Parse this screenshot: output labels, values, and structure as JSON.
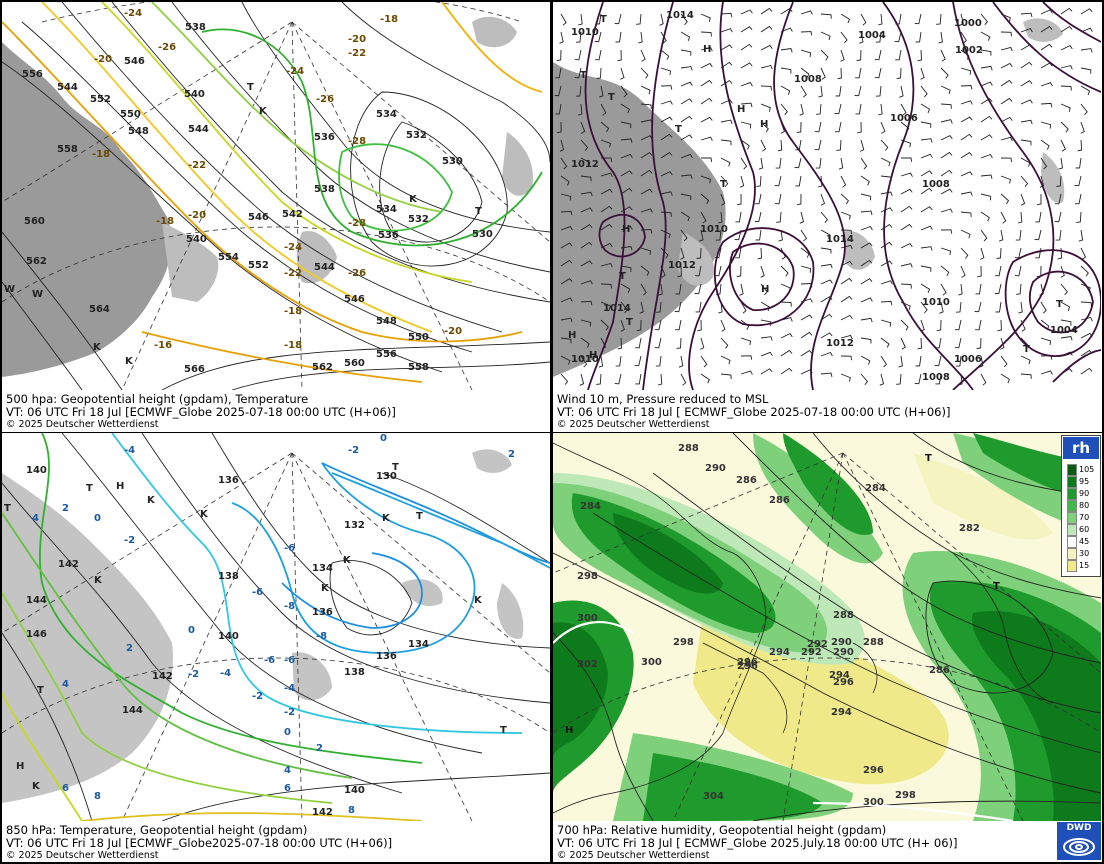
{
  "panels": [
    {
      "id": "z500",
      "caption": {
        "title": "500 hpa: Geopotential height (gpdam), Temperature",
        "valid": "VT: 06 UTC Fri  18 Jul [ECMWF_Globe 2025-07-18 00:00 UTC  (H+06)]",
        "copyright": "© 2025 Deutscher Wetterdienst"
      },
      "height_labels": [
        "556",
        "544",
        "552",
        "558",
        "550",
        "548",
        "560",
        "562",
        "564",
        "546",
        "538",
        "540",
        "544",
        "536",
        "534",
        "532",
        "530",
        "534",
        "532",
        "530",
        "536",
        "538",
        "546",
        "542",
        "554",
        "544",
        "540",
        "552",
        "550",
        "556",
        "558",
        "548",
        "546",
        "566",
        "562",
        "560"
      ],
      "temp_labels": [
        "-24",
        "-20",
        "-26",
        "-24",
        "-26",
        "-18",
        "-22",
        "-28",
        "-22",
        "-20",
        "-18",
        "-24",
        "-26",
        "-22",
        "-18",
        "-28",
        "-20",
        "-18",
        "-16",
        "-20",
        "-18"
      ],
      "pressure_centres": [
        "T",
        "K",
        "K",
        "T",
        "W",
        "W",
        "K",
        "K"
      ]
    },
    {
      "id": "mslp",
      "caption": {
        "title": "Wind 10 m, Pressure reduced to MSL",
        "valid": "VT: 06 UTC Fri  18 Jul [ ECMWF_Globe 2025-07-18 00:00 UTC (H+06)]",
        "copyright": "© 2025 Deutscher Wetterdienst"
      },
      "isobar_labels": [
        "1014",
        "1010",
        "1004",
        "1000",
        "1002",
        "1008",
        "1006",
        "1012",
        "1008",
        "1010",
        "1012",
        "1014",
        "1014",
        "1010",
        "1012",
        "1010",
        "1006",
        "1004",
        "1008"
      ],
      "pressure_centres": [
        "T",
        "H",
        "T",
        "T",
        "H",
        "T",
        "T",
        "H",
        "H",
        "T",
        "H",
        "T",
        "H",
        "T",
        "T",
        "H"
      ]
    },
    {
      "id": "t850",
      "caption": {
        "title": "850 hPa:  Temperature, Geopotential height (gpdam)",
        "valid": "VT: 06 UTC Fri  18 Jul [ECMWF_Globe2025-07-18 00:00 UTC (H+06)]",
        "copyright": "© 2025 Deutscher Wetterdienst"
      },
      "height_labels": [
        "140",
        "136",
        "130",
        "132",
        "134",
        "136",
        "138",
        "134",
        "136",
        "138",
        "140",
        "142",
        "144",
        "146",
        "142",
        "144",
        "140",
        "142"
      ],
      "temp_labels": [
        "-4",
        "-2",
        "0",
        "2",
        "4",
        "2",
        "0",
        "-2",
        "-6",
        "-6",
        "-8",
        "-8",
        "-6",
        "-6",
        "-4",
        "-2",
        "-2",
        "0",
        "2",
        "4",
        "6",
        "8",
        "6",
        "4",
        "2",
        "-2",
        "-4",
        "0",
        "8"
      ],
      "pressure_centres": [
        "T",
        "H",
        "K",
        "K",
        "T",
        "K",
        "K",
        "K",
        "T",
        "T",
        "T",
        "K",
        "H",
        "K",
        "T",
        "K"
      ]
    },
    {
      "id": "rh700",
      "caption": {
        "title": "700 hPa:  Relative humidity, Geopotential height (gpdam)",
        "valid": "VT: 06 UTC Fri  18 Jul [ ECMWF_Globe  2025.July.18 00:00 UTC (H+ 06)]",
        "copyright": "© 2025 Deutscher Wetterdienst"
      },
      "height_labels": [
        "288",
        "290",
        "286",
        "284",
        "282",
        "284",
        "286",
        "288",
        "290",
        "292",
        "294",
        "296",
        "298",
        "296",
        "294",
        "296",
        "300",
        "298",
        "300",
        "302",
        "304",
        "300",
        "298",
        "296",
        "294",
        "292",
        "290",
        "288",
        "286"
      ],
      "pressure_centres": [
        "T",
        "T",
        "H"
      ],
      "legend": {
        "title": "rh",
        "ticks": [
          "105",
          "95",
          "90",
          "80",
          "70",
          "60",
          "45",
          "30",
          "15"
        ],
        "colors": [
          "#0a5a14",
          "#0d7a1c",
          "#1f9a2c",
          "#40b84a",
          "#7fd07a",
          "#bfe8b8",
          "#ffffff",
          "#f5f3c0",
          "#efe98a"
        ]
      }
    }
  ],
  "logo": "DWD"
}
